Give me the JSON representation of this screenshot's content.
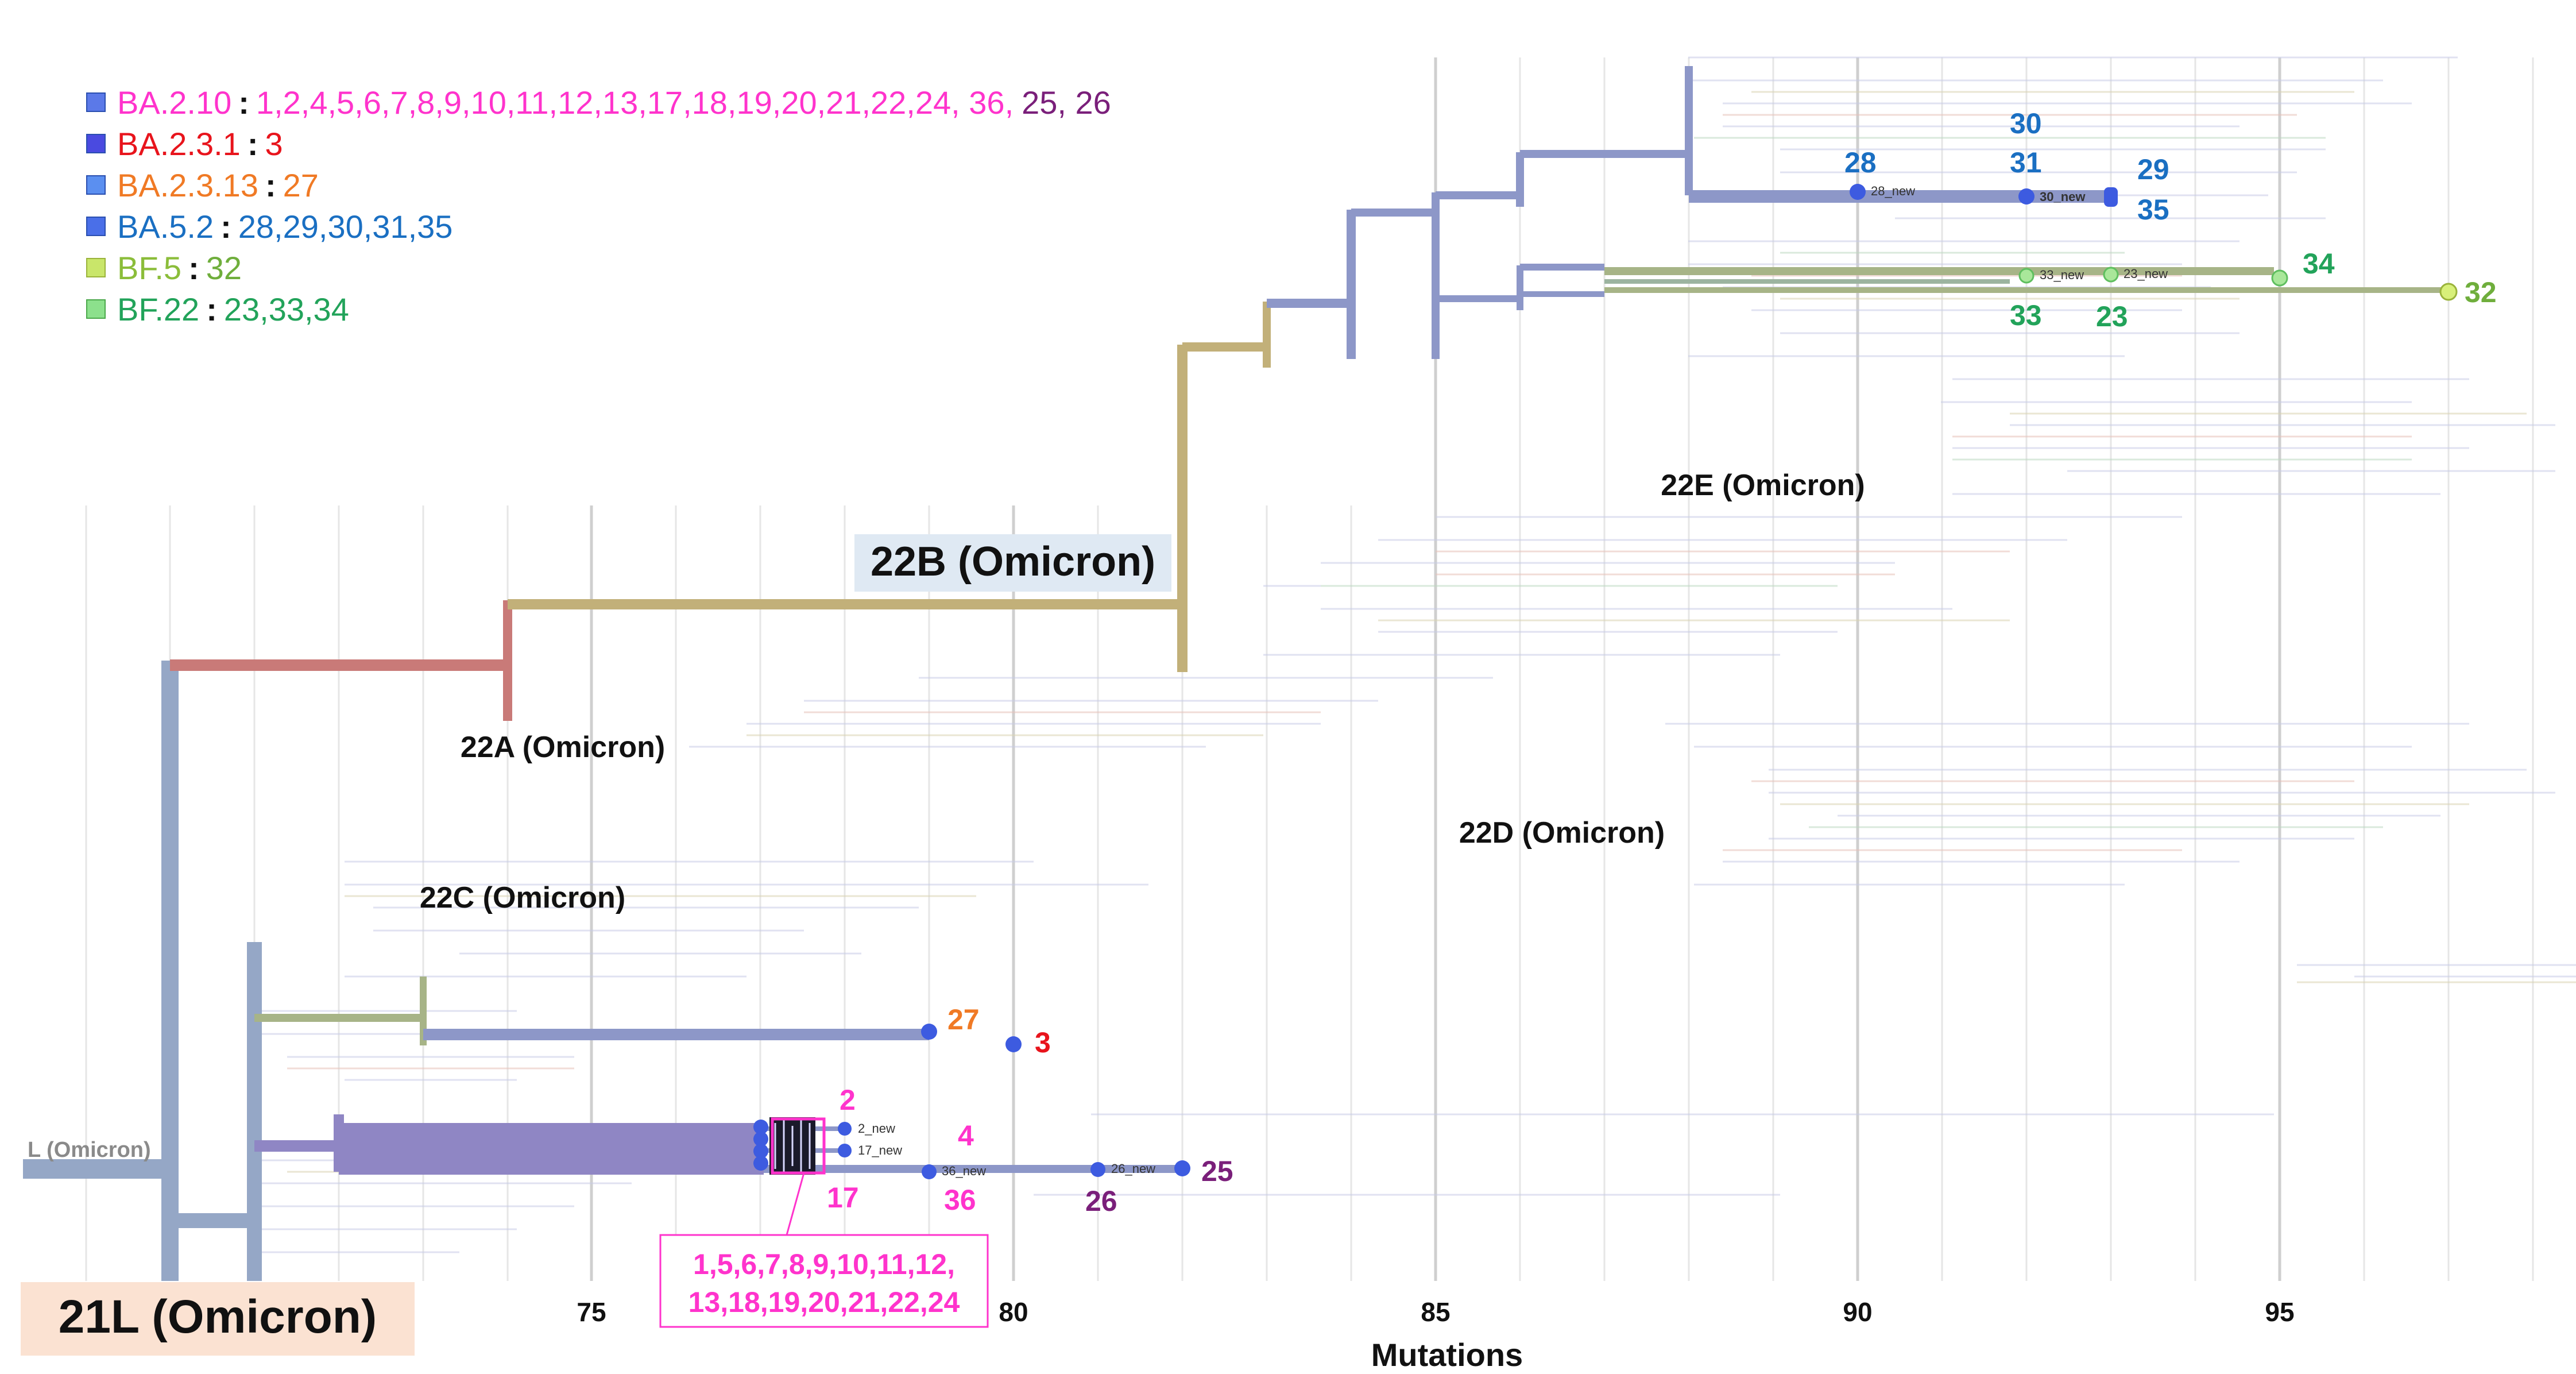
{
  "legend": [
    {
      "lineage": "BA.2.10",
      "lineage_color": "#ff33cc",
      "swatch": "#5b79e8",
      "samples": "1,2,4,5,6,7,8,9,10,11,12,13,17,18,19,20,21,22,24, 36,",
      "samples_color": "#ff33cc",
      "extra": "25, 26",
      "extra_color": "#7a1f7a"
    },
    {
      "lineage": "BA.2.3.1",
      "lineage_color": "#e8141c",
      "swatch": "#4a4ae0",
      "samples": "3",
      "samples_color": "#e8141c"
    },
    {
      "lineage": "BA.2.3.13",
      "lineage_color": "#f07a25",
      "swatch": "#5b8ff0",
      "samples": "27",
      "samples_color": "#f07a25"
    },
    {
      "lineage": "BA.5.2",
      "lineage_color": "#1a6fc2",
      "swatch": "#4a6fe8",
      "samples": "28,29,30,31,35",
      "samples_color": "#1a6fc2"
    },
    {
      "lineage": "BF.5",
      "lineage_color": "#8bbd3a",
      "swatch": "#c9e66a",
      "samples": "32",
      "samples_color": "#6fae3c"
    },
    {
      "lineage": "BF.22",
      "lineage_color": "#22a35a",
      "swatch": "#8ce08c",
      "samples": "23,33,34",
      "samples_color": "#22a35a"
    }
  ],
  "clades": {
    "c21L": "21L (Omicron)",
    "c21L_root": "L (Omicron)",
    "c22A": "22A (Omicron)",
    "c22B": "22B (Omicron)",
    "c22C": "22C (Omicron)",
    "c22D": "22D (Omicron)",
    "c22E": "22E (Omicron)"
  },
  "axis": {
    "title": "Mutations",
    "ticks": [
      75,
      80,
      85,
      90,
      95
    ]
  },
  "sample_labels": {
    "n28": "28",
    "n30": "30",
    "n31": "31",
    "n29": "29",
    "n35": "35",
    "n34": "34",
    "n32": "32",
    "n33": "33",
    "n23": "23",
    "n27": "27",
    "n3": "3",
    "n2": "2",
    "n4": "4",
    "n25": "25",
    "n17": "17",
    "n36": "36",
    "n26": "26"
  },
  "tip_tags": {
    "t28": "28_new",
    "t30": "30_new",
    "t33": "33_new",
    "t23": "23_new",
    "t2": "2_new",
    "t17": "17_new",
    "t36": "36_new",
    "t26": "26_new"
  },
  "cluster_box": {
    "line1": "1,5,6,7,8,9,10,11,12,",
    "line2": "13,18,19,20,21,22,24"
  },
  "colors": {
    "trunk": "#95a7c6",
    "red_branch": "#c97a78",
    "tan_branch": "#c2b079",
    "blue_branch": "#8d97c8",
    "purple_block": "#8f86c4",
    "green_branch": "#a7b487",
    "node_blue": "#3d5be0",
    "node_green": "#a9e79a",
    "node_lime": "#d8f07a",
    "magenta": "#ff33cc",
    "purple_text": "#7a1f7a",
    "blue_text": "#1a6fc2",
    "green_text": "#22a35a",
    "lime_text": "#6fae3c",
    "orange_text": "#f07a25",
    "red_text": "#e8141c"
  }
}
